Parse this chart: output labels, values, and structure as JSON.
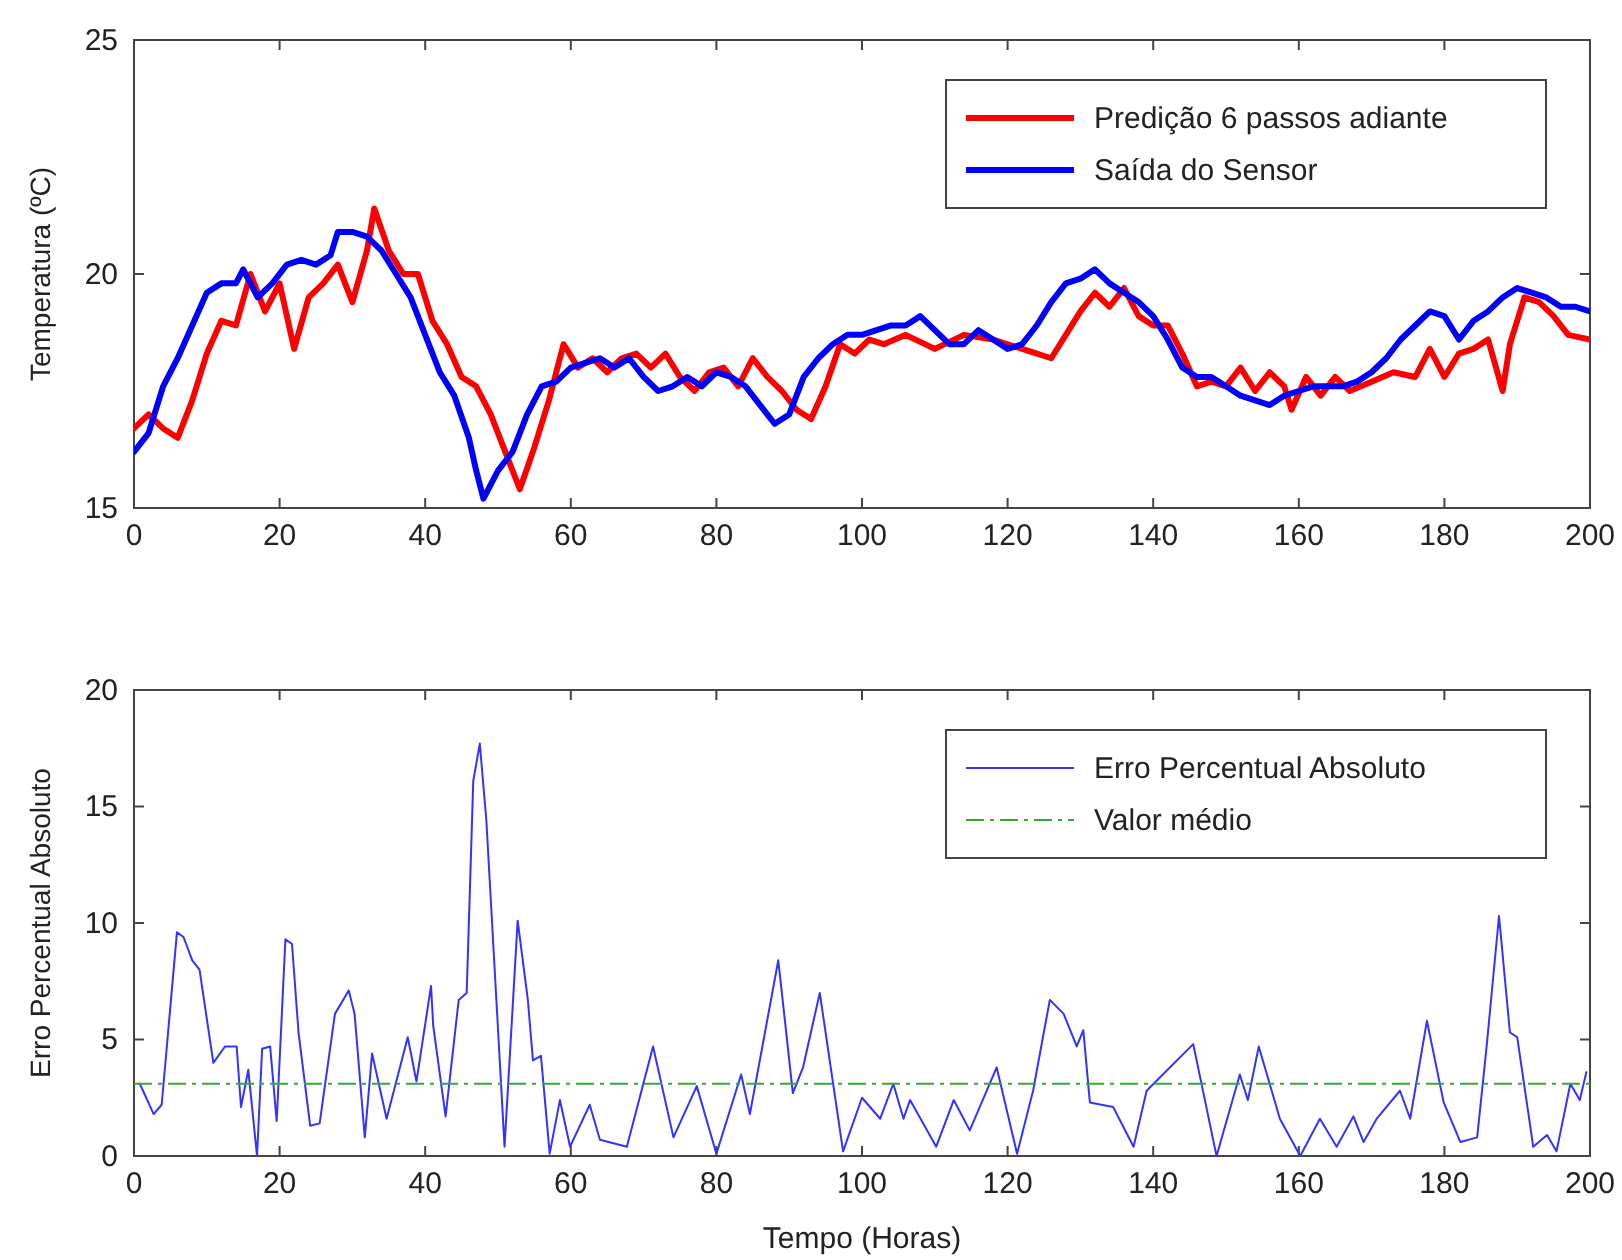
{
  "chart_data": [
    {
      "type": "line",
      "ylabel": "Temperatura (ºC)",
      "xlim": [
        0,
        200
      ],
      "ylim": [
        15,
        25
      ],
      "xticks": [
        0,
        20,
        40,
        60,
        80,
        100,
        120,
        140,
        160,
        180,
        200
      ],
      "yticks": [
        15,
        20,
        25
      ],
      "legend": "top right",
      "grid": false,
      "line_style": "solid",
      "series": [
        {
          "name": "Predição 6 passos adiante",
          "color": "#ff0000",
          "x": [
            0,
            2,
            4,
            6,
            8,
            10,
            12,
            14,
            16,
            18,
            20,
            22,
            24,
            26,
            28,
            30,
            32,
            33,
            35,
            37,
            39,
            41,
            43,
            45,
            47,
            49,
            51,
            53,
            55,
            57,
            59,
            61,
            63,
            65,
            67,
            69,
            71,
            73,
            75,
            77,
            79,
            81,
            83,
            85,
            87,
            89,
            91,
            93,
            95,
            97,
            99,
            101,
            103,
            106,
            110,
            114,
            118,
            122,
            126,
            128,
            130,
            132,
            134,
            136,
            138,
            140,
            142,
            144,
            146,
            148,
            150,
            152,
            154,
            156,
            158,
            159,
            161,
            163,
            165,
            167,
            170,
            173,
            176,
            178,
            180,
            182,
            184,
            186,
            188,
            189,
            191,
            193,
            195,
            197,
            200
          ],
          "values": [
            16.7,
            17.0,
            16.7,
            16.5,
            17.3,
            18.3,
            19.0,
            18.9,
            20.0,
            19.2,
            19.8,
            18.4,
            19.5,
            19.8,
            20.2,
            19.4,
            20.5,
            21.4,
            20.5,
            20.0,
            20.0,
            19.0,
            18.5,
            17.8,
            17.6,
            17.0,
            16.2,
            15.4,
            16.3,
            17.3,
            18.5,
            18.0,
            18.2,
            17.9,
            18.2,
            18.3,
            18.0,
            18.3,
            17.8,
            17.5,
            17.9,
            18.0,
            17.6,
            18.2,
            17.8,
            17.5,
            17.1,
            16.9,
            17.6,
            18.5,
            18.3,
            18.6,
            18.5,
            18.7,
            18.4,
            18.7,
            18.6,
            18.4,
            18.2,
            18.7,
            19.2,
            19.6,
            19.3,
            19.7,
            19.1,
            18.9,
            18.9,
            18.3,
            17.6,
            17.7,
            17.6,
            18.0,
            17.5,
            17.9,
            17.6,
            17.1,
            17.8,
            17.4,
            17.8,
            17.5,
            17.7,
            17.9,
            17.8,
            18.4,
            17.8,
            18.3,
            18.4,
            18.6,
            17.5,
            18.5,
            19.5,
            19.4,
            19.1,
            18.7,
            18.6
          ]
        },
        {
          "name": "Saída do Sensor",
          "color": "#0000ff",
          "x": [
            0,
            2,
            4,
            6,
            8,
            10,
            12,
            14,
            15,
            17,
            19,
            21,
            23,
            25,
            27,
            28,
            30,
            32,
            34,
            36,
            38,
            40,
            42,
            44,
            46,
            47,
            48,
            50,
            52,
            54,
            56,
            58,
            60,
            62,
            64,
            66,
            68,
            70,
            72,
            74,
            76,
            78,
            80,
            82,
            84,
            86,
            88,
            90,
            92,
            94,
            96,
            98,
            100,
            102,
            104,
            106,
            108,
            110,
            112,
            114,
            116,
            118,
            120,
            122,
            124,
            126,
            128,
            130,
            132,
            134,
            136,
            138,
            140,
            142,
            144,
            146,
            148,
            150,
            152,
            154,
            156,
            158,
            160,
            162,
            164,
            166,
            168,
            170,
            172,
            174,
            176,
            178,
            180,
            182,
            184,
            186,
            188,
            190,
            192,
            194,
            196,
            198,
            200
          ],
          "values": [
            16.2,
            16.6,
            17.6,
            18.2,
            18.9,
            19.6,
            19.8,
            19.8,
            20.1,
            19.5,
            19.8,
            20.2,
            20.3,
            20.2,
            20.4,
            20.9,
            20.9,
            20.8,
            20.5,
            20.0,
            19.5,
            18.7,
            17.9,
            17.4,
            16.5,
            15.8,
            15.2,
            15.8,
            16.2,
            17.0,
            17.6,
            17.7,
            18.0,
            18.1,
            18.2,
            18.0,
            18.2,
            17.8,
            17.5,
            17.6,
            17.8,
            17.6,
            17.9,
            17.8,
            17.6,
            17.2,
            16.8,
            17.0,
            17.8,
            18.2,
            18.5,
            18.7,
            18.7,
            18.8,
            18.9,
            18.9,
            19.1,
            18.8,
            18.5,
            18.5,
            18.8,
            18.6,
            18.4,
            18.5,
            18.9,
            19.4,
            19.8,
            19.9,
            20.1,
            19.8,
            19.6,
            19.4,
            19.1,
            18.6,
            18.0,
            17.8,
            17.8,
            17.6,
            17.4,
            17.3,
            17.2,
            17.4,
            17.5,
            17.6,
            17.6,
            17.6,
            17.7,
            17.9,
            18.2,
            18.6,
            18.9,
            19.2,
            19.1,
            18.6,
            19.0,
            19.2,
            19.5,
            19.7,
            19.6,
            19.5,
            19.3,
            19.3,
            19.2
          ]
        }
      ]
    },
    {
      "type": "line",
      "xlabel": "Tempo (Horas)",
      "ylabel": "Erro Percentual Absoluto",
      "xlim": [
        0,
        200
      ],
      "ylim": [
        0,
        20
      ],
      "xticks": [
        0,
        20,
        40,
        60,
        80,
        100,
        120,
        140,
        160,
        180,
        200
      ],
      "yticks": [
        0,
        5,
        10,
        15,
        20
      ],
      "legend": "top right",
      "grid": false,
      "line_style": "solid",
      "series": [
        {
          "name": "Erro Percentual Absoluto",
          "color": "#3333ff",
          "x": [
            0.8,
            2.7,
            3.8,
            5.9,
            6.8,
            8,
            9,
            10.9,
            12.5,
            14.1,
            14.7,
            15.7,
            16.9,
            17.6,
            18.7,
            19.6,
            20.8,
            21.7,
            22.6,
            24.2,
            25.5,
            27.6,
            29.5,
            30.3,
            31.7,
            32.7,
            34.7,
            37.6,
            38.8,
            40.8,
            41.1,
            42.8,
            44.6,
            45.7,
            46.6,
            47.5,
            48.4,
            50.9,
            52.7,
            54.1,
            54.8,
            55.9,
            57.1,
            58.5,
            59.9,
            62.6,
            64,
            67.7,
            71.3,
            74.1,
            77.3,
            80,
            83.4,
            84.6,
            88.5,
            90.5,
            91.9,
            94.2,
            97.4,
            100,
            102.5,
            104.3,
            105.7,
            106.6,
            110.2,
            112.6,
            114.8,
            118.5,
            121.3,
            123.5,
            125.8,
            127.7,
            129.5,
            130.4,
            131.3,
            134.5,
            137.3,
            139.1,
            145.5,
            148.7,
            151.9,
            153,
            154.5,
            157.4,
            160.2,
            162.9,
            165.2,
            167.5,
            168.9,
            170.7,
            173.9,
            175.3,
            177.6,
            179.9,
            182.2,
            184.5,
            185.8,
            187.5,
            189,
            190,
            192.2,
            194.1,
            195.4,
            197.3,
            198.6,
            199.5
          ],
          "values": [
            3.1,
            1.8,
            2.2,
            9.6,
            9.4,
            8.4,
            8.0,
            4.0,
            4.7,
            4.7,
            2.1,
            3.7,
            0.0,
            4.6,
            4.7,
            1.5,
            9.3,
            9.1,
            5.3,
            1.3,
            1.4,
            6.1,
            7.1,
            6.1,
            0.8,
            4.4,
            1.6,
            5.1,
            3.2,
            7.3,
            5.6,
            1.7,
            6.7,
            7.0,
            16.1,
            17.7,
            14.4,
            0.4,
            10.1,
            6.7,
            4.1,
            4.3,
            0.1,
            2.4,
            0.4,
            2.2,
            0.7,
            0.4,
            4.7,
            0.8,
            3.0,
            0.1,
            3.5,
            1.8,
            8.4,
            2.7,
            3.8,
            7.0,
            0.2,
            2.5,
            1.6,
            3.1,
            1.6,
            2.4,
            0.4,
            2.4,
            1.1,
            3.8,
            0.1,
            2.8,
            6.7,
            6.1,
            4.7,
            5.4,
            2.3,
            2.1,
            0.4,
            2.8,
            4.8,
            0.0,
            3.5,
            2.4,
            4.7,
            1.6,
            0.0,
            1.6,
            0.4,
            1.7,
            0.6,
            1.6,
            2.8,
            1.6,
            5.8,
            2.3,
            0.6,
            0.8,
            4.7,
            10.3,
            5.3,
            5.1,
            0.4,
            0.9,
            0.2,
            3.1,
            2.4,
            3.6
          ]
        }
      ],
      "ref_lines": [
        {
          "axis": "y",
          "value": 3.1,
          "label": "Valor médio",
          "color": "#33aa33",
          "line_style": "dashed"
        }
      ]
    }
  ]
}
